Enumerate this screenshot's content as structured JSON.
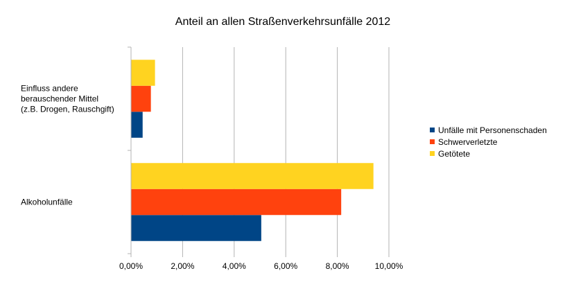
{
  "chart_data": {
    "type": "bar",
    "orientation": "horizontal",
    "title": "Anteil an allen Straßenverkehrsunfälle 2012",
    "categories": [
      [
        "Einfluss andere",
        "berauschender Mittel",
        "(z.B. Drogen, Rauschgift)"
      ],
      [
        "Alkoholunfälle"
      ]
    ],
    "series": [
      {
        "name": "Unfälle mit Personenschaden",
        "color": "#004586",
        "values": [
          0.45,
          5.05
        ]
      },
      {
        "name": "Schwerverletzte",
        "color": "#ff420e",
        "values": [
          0.77,
          8.15
        ]
      },
      {
        "name": "Getötete",
        "color": "#ffd320",
        "values": [
          0.93,
          9.4
        ]
      }
    ],
    "xlim": [
      0,
      10
    ],
    "xticks": [
      "0,00%",
      "2,00%",
      "4,00%",
      "6,00%",
      "8,00%",
      "10,00%"
    ],
    "grid": "vertical",
    "legend_position": "right"
  }
}
